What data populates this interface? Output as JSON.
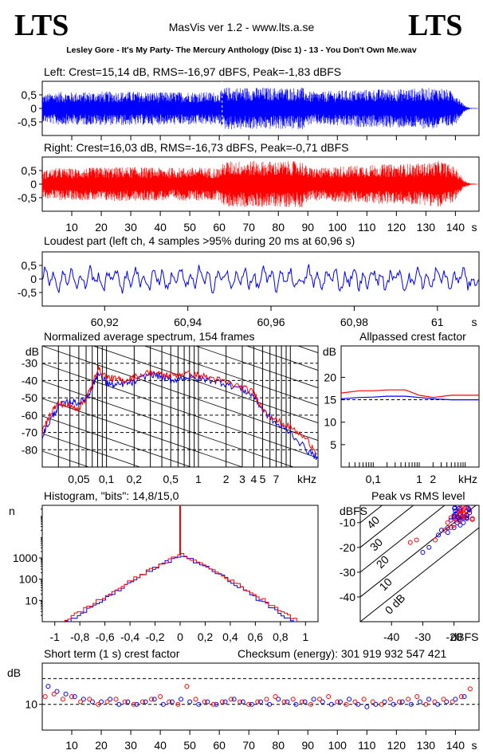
{
  "header": {
    "logo_left": "LTS",
    "logo_right": "LTS",
    "app_title": "MasVis ver 1.2 - www.lts.a.se",
    "track": "Lesley Gore - It's My Party- The Mercury Anthology (Disc 1) - 13 - You Don't Own Me.wav"
  },
  "colors": {
    "left": "#0000ff",
    "right": "#ff0000",
    "axis": "#000000"
  },
  "chart_data": [
    {
      "id": "left_wave",
      "type": "area",
      "title": "Left: Crest=15,14 dB, RMS=-16,97 dBFS, Peak=-1,83 dBFS",
      "yticks": [
        "0,5",
        "0",
        "-0,5"
      ],
      "ylim": [
        -1,
        1
      ],
      "xlim": [
        0,
        148
      ],
      "marker_x": 60.96,
      "series": [
        {
          "color": "#0000ff",
          "envelope_x": [
            0,
            5,
            10,
            20,
            30,
            40,
            50,
            60,
            62,
            70,
            80,
            88,
            90,
            95,
            100,
            110,
            120,
            130,
            135,
            140,
            143,
            145,
            148
          ],
          "envelope_amp": [
            0.5,
            0.62,
            0.6,
            0.62,
            0.63,
            0.6,
            0.62,
            0.6,
            0.78,
            0.78,
            0.77,
            0.78,
            0.62,
            0.62,
            0.66,
            0.7,
            0.72,
            0.75,
            0.78,
            0.6,
            0.12,
            0.02,
            0.01
          ]
        }
      ]
    },
    {
      "id": "right_wave",
      "type": "area",
      "title": "Right: Crest=16,03 dB, RMS=-16,73 dBFS, Peak=-0,71 dBFS",
      "yticks": [
        "0,5",
        "0",
        "-0,5"
      ],
      "ylim": [
        -1,
        1
      ],
      "xlim": [
        0,
        148
      ],
      "xticks": [
        "10",
        "20",
        "30",
        "40",
        "50",
        "60",
        "70",
        "80",
        "90",
        "100",
        "110",
        "120",
        "130",
        "140",
        "s"
      ],
      "series": [
        {
          "color": "#ff0000",
          "envelope_x": [
            0,
            5,
            10,
            20,
            30,
            40,
            50,
            60,
            62,
            70,
            80,
            88,
            90,
            95,
            100,
            110,
            120,
            130,
            135,
            140,
            143,
            145,
            148
          ],
          "envelope_amp": [
            0.5,
            0.6,
            0.58,
            0.62,
            0.64,
            0.6,
            0.62,
            0.6,
            0.85,
            0.86,
            0.84,
            0.86,
            0.62,
            0.6,
            0.66,
            0.72,
            0.74,
            0.78,
            0.88,
            0.62,
            0.15,
            0.03,
            0.01
          ]
        }
      ]
    },
    {
      "id": "loudest",
      "type": "line",
      "title": "Loudest part (left  ch, 4 samples >95% during 20 ms at 60,96 s)",
      "yticks": [
        "0,5",
        "0",
        "-0,5"
      ],
      "xticks": [
        "60,92",
        "60,94",
        "60,96",
        "60,98",
        "61",
        "s"
      ],
      "xlim": [
        60.905,
        61.01
      ],
      "ylim": [
        -1,
        1
      ],
      "series": [
        {
          "color": "#0000ff"
        }
      ]
    },
    {
      "id": "spectrum",
      "type": "line",
      "title": "Normalized average spectrum, 154 frames",
      "ylabel": "dB",
      "yticks": [
        "-30",
        "-40",
        "-50",
        "-60",
        "-70",
        "-80"
      ],
      "xticks": [
        "0,05",
        "0,1",
        "0,2",
        "0,5",
        "1",
        "2",
        "3",
        "4",
        "5",
        "7",
        "kHz"
      ],
      "ylim": [
        -90,
        -20
      ],
      "series": [
        {
          "color": "#0000ff",
          "x": [
            0.02,
            0.025,
            0.03,
            0.04,
            0.05,
            0.06,
            0.07,
            0.08,
            0.1,
            0.12,
            0.15,
            0.2,
            0.3,
            0.4,
            0.5,
            0.7,
            1,
            1.5,
            2,
            3,
            4,
            5,
            7,
            10,
            15,
            20
          ],
          "y": [
            -72,
            -62,
            -55,
            -52,
            -53,
            -50,
            -44,
            -36,
            -41,
            -43,
            -42,
            -41,
            -36,
            -38,
            -40,
            -38,
            -39,
            -40,
            -42,
            -45,
            -49,
            -57,
            -65,
            -70,
            -80,
            -85
          ]
        },
        {
          "color": "#ff0000",
          "x": [
            0.02,
            0.025,
            0.03,
            0.04,
            0.05,
            0.06,
            0.07,
            0.08,
            0.1,
            0.12,
            0.15,
            0.2,
            0.3,
            0.4,
            0.5,
            0.7,
            1,
            1.5,
            2,
            3,
            4,
            5,
            7,
            10,
            15,
            20
          ],
          "y": [
            -70,
            -58,
            -53,
            -55,
            -56,
            -50,
            -43,
            -33,
            -38,
            -39,
            -40,
            -38,
            -35,
            -37,
            -37,
            -36,
            -37,
            -39,
            -41,
            -44,
            -47,
            -56,
            -63,
            -67,
            -74,
            -82
          ]
        }
      ]
    },
    {
      "id": "allpass",
      "type": "line",
      "title": "Allpassed crest factor",
      "ylabel": "dB",
      "yticks": [
        "20",
        "15",
        "10",
        "5"
      ],
      "xticks": [
        "0,1",
        "1",
        "2",
        "kHz"
      ],
      "ylim": [
        0,
        27
      ],
      "series": [
        {
          "color": "#ff0000",
          "x": [
            0.02,
            0.05,
            0.1,
            0.2,
            0.5,
            1,
            2,
            5,
            20
          ],
          "y": [
            16.5,
            17,
            17,
            17.2,
            17.2,
            16,
            15.5,
            16,
            16
          ]
        },
        {
          "color": "#0000ff",
          "x": [
            0.02,
            0.05,
            0.1,
            0.2,
            0.5,
            1,
            2,
            5,
            20
          ],
          "y": [
            15.2,
            15.5,
            15.6,
            15.8,
            15.8,
            15.5,
            15.2,
            15,
            15
          ]
        }
      ]
    },
    {
      "id": "histogram",
      "type": "line",
      "title": "Histogram, \"bits\": 14,8/15,0",
      "ylabel": "n",
      "yticks": [
        "1000",
        "100",
        "10"
      ],
      "xticks": [
        "-1",
        "-0,8",
        "-0,6",
        "-0,4",
        "-0,2",
        "0",
        "0,2",
        "0,4",
        "0,6",
        "0,8",
        "1"
      ],
      "xlim": [
        -1.1,
        1.1
      ],
      "ylim": [
        1,
        300000
      ],
      "series": [
        {
          "color": "#0000ff",
          "x": [
            -0.9,
            -0.8,
            -0.7,
            -0.6,
            -0.5,
            -0.4,
            -0.3,
            -0.2,
            -0.1,
            0,
            0.1,
            0.2,
            0.3,
            0.4,
            0.5,
            0.6,
            0.7,
            0.8,
            0.9
          ],
          "y": [
            1,
            2,
            5,
            12,
            30,
            70,
            160,
            350,
            700,
            1300,
            700,
            350,
            160,
            70,
            30,
            12,
            5,
            2,
            1
          ]
        },
        {
          "color": "#ff0000",
          "x": [
            -0.9,
            -0.8,
            -0.7,
            -0.6,
            -0.5,
            -0.4,
            -0.3,
            -0.2,
            -0.1,
            0,
            0.1,
            0.2,
            0.3,
            0.4,
            0.5,
            0.6,
            0.7,
            0.8,
            0.9
          ],
          "y": [
            1.3,
            3,
            7,
            15,
            35,
            80,
            180,
            380,
            750,
            1400,
            750,
            380,
            180,
            80,
            35,
            15,
            7,
            3,
            1.3
          ]
        }
      ]
    },
    {
      "id": "peak_rms",
      "type": "scatter",
      "title": "Peak vs RMS level",
      "ylabel": "dBFS",
      "xlabel": "dBFS",
      "yticks": [
        "-10",
        "-20",
        "-30",
        "-40"
      ],
      "xticks": [
        "-40",
        "-30",
        "-20",
        "dBFS"
      ],
      "diag_labels": [
        "40",
        "30",
        "20",
        "10",
        "0 dB"
      ],
      "xlim": [
        -50,
        -12
      ],
      "ylim": [
        -50,
        -3
      ],
      "series": [
        {
          "color": "#0000ff",
          "x": [
            -21,
            -20,
            -19,
            -18,
            -17,
            -16,
            -20,
            -22,
            -25,
            -28,
            -30,
            -19,
            -18,
            -17,
            -16,
            -15,
            -22,
            -24
          ],
          "y": [
            -9,
            -8,
            -10,
            -9,
            -8,
            -7,
            -12,
            -14,
            -15,
            -20,
            -22,
            -6,
            -11,
            -10,
            -8,
            -6,
            -12,
            -13
          ]
        },
        {
          "color": "#ff0000",
          "x": [
            -22,
            -21,
            -20,
            -19,
            -18,
            -17,
            -16,
            -15,
            -23,
            -26,
            -32,
            -34,
            -20,
            -18,
            -17,
            -16,
            -19,
            -21
          ],
          "y": [
            -10,
            -8,
            -7,
            -9,
            -8,
            -6,
            -7,
            -5,
            -13,
            -17,
            -17,
            -18,
            -11,
            -9,
            -5,
            -4,
            -6,
            -12
          ]
        }
      ]
    },
    {
      "id": "short_crest",
      "type": "scatter",
      "title": "Short term (1 s) crest factor",
      "checksum": "Checksum (energy):   301 919 932 547 421",
      "ylabel": "dB",
      "yticks": [
        "10"
      ],
      "xticks": [
        "10",
        "20",
        "30",
        "40",
        "50",
        "60",
        "70",
        "80",
        "90",
        "100",
        "110",
        "120",
        "130",
        "140",
        "s"
      ],
      "xlim": [
        0,
        148
      ],
      "ylim": [
        0,
        26
      ],
      "series": [
        {
          "color": "#0000ff",
          "x": [
            2,
            5,
            8,
            11,
            14,
            17,
            20,
            23,
            26,
            29,
            32,
            35,
            38,
            41,
            44,
            47,
            50,
            53,
            56,
            59,
            62,
            65,
            68,
            71,
            74,
            77,
            80,
            83,
            86,
            89,
            92,
            95,
            98,
            101,
            104,
            107,
            110,
            113,
            116,
            119,
            122,
            125,
            128,
            131,
            134,
            137,
            140,
            143
          ],
          "y": [
            17,
            15,
            14,
            13,
            12,
            11,
            11,
            12,
            10,
            11,
            10,
            11,
            12,
            10,
            11,
            12,
            11,
            10,
            11,
            10,
            11,
            12,
            11,
            10,
            11,
            10,
            12,
            11,
            10,
            11,
            12,
            11,
            10,
            11,
            12,
            10,
            9,
            10,
            11,
            10,
            11,
            10,
            11,
            12,
            10,
            11,
            12,
            13
          ]
        },
        {
          "color": "#ff0000",
          "x": [
            1,
            4,
            7,
            10,
            13,
            16,
            19,
            22,
            25,
            28,
            31,
            34,
            37,
            40,
            43,
            46,
            49,
            52,
            55,
            58,
            61,
            64,
            67,
            70,
            73,
            76,
            79,
            82,
            85,
            88,
            91,
            94,
            97,
            100,
            103,
            106,
            109,
            112,
            115,
            118,
            121,
            124,
            127,
            130,
            133,
            136,
            139,
            142,
            145
          ],
          "y": [
            13,
            14,
            12,
            13,
            11,
            12,
            10,
            11,
            12,
            11,
            10,
            11,
            12,
            13,
            11,
            10,
            17,
            12,
            11,
            10,
            11,
            12,
            11,
            10,
            11,
            12,
            13,
            11,
            12,
            11,
            10,
            12,
            13,
            11,
            10,
            11,
            12,
            11,
            10,
            12,
            11,
            12,
            13,
            10,
            11,
            12,
            11,
            13,
            16
          ]
        }
      ]
    }
  ]
}
